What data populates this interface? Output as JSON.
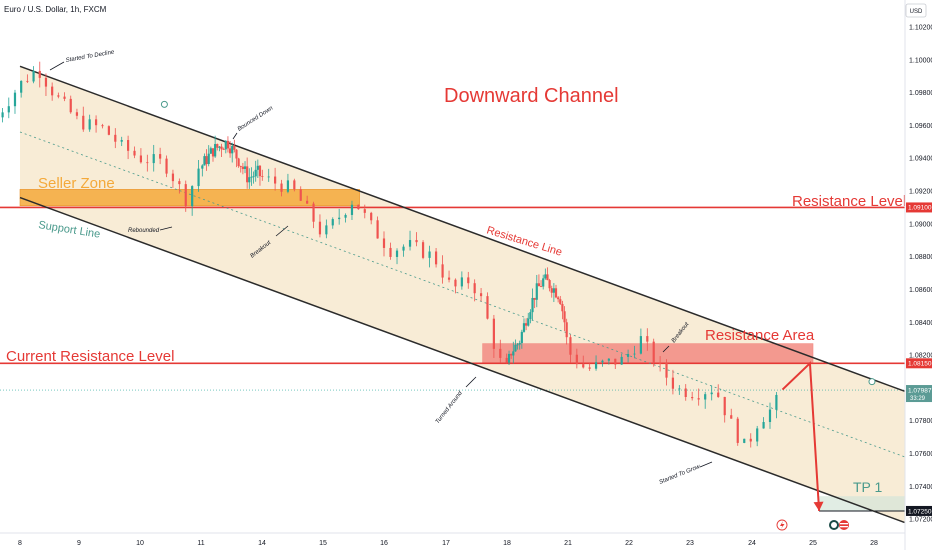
{
  "header": {
    "symbol_title": "Euro / U.S. Dollar, 1h, FXCM",
    "currency_button": "USD"
  },
  "colors": {
    "channel_fill": "#f5e6c8",
    "seller_zone": "#f4a93a",
    "resistance_area": "#f28b82",
    "red_line": "#e53935",
    "up_candle": "#26a69a",
    "down_candle": "#ef5350",
    "channel_line": "#2b2b2b",
    "midline": "#4a9a8c",
    "arrow": "#e53935",
    "tp_fill": "#d4e6d8"
  },
  "chart_data": {
    "type": "candlestick",
    "instrument": "Euro / U.S. Dollar",
    "timeframe": "1h",
    "y_axis": {
      "ticks": [
        "1.10200",
        "1.10000",
        "1.09800",
        "1.09600",
        "1.09400",
        "1.09200",
        "1.09000",
        "1.08800",
        "1.08600",
        "1.08400",
        "1.08200",
        "1.08000",
        "1.07800",
        "1.07600",
        "1.07400",
        "1.07200"
      ],
      "ylim": [
        1.0714,
        1.1034
      ]
    },
    "x_axis": {
      "ticks": [
        "8",
        "9",
        "10",
        "11",
        "14",
        "15",
        "16",
        "17",
        "18",
        "21",
        "22",
        "23",
        "24",
        "25",
        "28"
      ]
    },
    "price_labels": {
      "resistance_level": "1.09100",
      "current_resistance": "1.08150",
      "current_price": "1.07987",
      "countdown": "33:29",
      "tp1": "1.07250"
    },
    "levels": {
      "resistance_level": 1.091,
      "current_resistance": 1.0815,
      "tp1": 1.0725
    },
    "channel": {
      "upper": [
        {
          "x": 8.0,
          "y": 1.0996
        },
        {
          "x": 28.5,
          "y": 1.0798
        }
      ],
      "lower": [
        {
          "x": 8.0,
          "y": 1.0916
        },
        {
          "x": 28.5,
          "y": 1.0718
        }
      ]
    },
    "zones": [
      {
        "name": "seller_zone",
        "x0": 8.0,
        "x1": 15.6,
        "y0": 1.0911,
        "y1": 1.0921
      },
      {
        "name": "resistance_area",
        "x0": 17.6,
        "x1": 25.0,
        "y0": 1.0815,
        "y1": 1.0827
      }
    ],
    "projection": [
      {
        "x": 24.5,
        "y": 1.0799
      },
      {
        "x": 24.95,
        "y": 1.0815
      },
      {
        "x": 25.3,
        "y": 1.0725
      }
    ],
    "price_path": [
      {
        "x": 7.6,
        "y": 1.0965
      },
      {
        "x": 7.8,
        "y": 1.0975
      },
      {
        "x": 8.0,
        "y": 1.0985
      },
      {
        "x": 8.3,
        "y": 1.0995
      },
      {
        "x": 8.6,
        "y": 1.0978
      },
      {
        "x": 9.0,
        "y": 1.0962
      },
      {
        "x": 9.4,
        "y": 1.0958
      },
      {
        "x": 9.7,
        "y": 1.0947
      },
      {
        "x": 10.0,
        "y": 1.094
      },
      {
        "x": 10.4,
        "y": 1.0937
      },
      {
        "x": 10.6,
        "y": 1.0925
      },
      {
        "x": 10.8,
        "y": 1.0912
      },
      {
        "x": 10.9,
        "y": 1.0933
      },
      {
        "x": 11.3,
        "y": 1.094
      },
      {
        "x": 11.6,
        "y": 1.0945
      },
      {
        "x": 12.3,
        "y": 1.095
      },
      {
        "x": 12.9,
        "y": 1.0938
      },
      {
        "x": 13.3,
        "y": 1.0928
      },
      {
        "x": 13.8,
        "y": 1.0931
      },
      {
        "x": 14.5,
        "y": 1.0921
      },
      {
        "x": 14.8,
        "y": 1.0905
      },
      {
        "x": 15.0,
        "y": 1.0893
      },
      {
        "x": 15.3,
        "y": 1.0906
      },
      {
        "x": 15.5,
        "y": 1.0915
      },
      {
        "x": 15.8,
        "y": 1.0898
      },
      {
        "x": 16.1,
        "y": 1.0884
      },
      {
        "x": 16.4,
        "y": 1.0887
      },
      {
        "x": 16.8,
        "y": 1.088
      },
      {
        "x": 17.1,
        "y": 1.086
      },
      {
        "x": 17.4,
        "y": 1.0866
      },
      {
        "x": 17.6,
        "y": 1.0852
      },
      {
        "x": 17.8,
        "y": 1.0825
      },
      {
        "x": 17.95,
        "y": 1.081
      },
      {
        "x": 18.2,
        "y": 1.0822
      },
      {
        "x": 18.6,
        "y": 1.0828
      },
      {
        "x": 19.0,
        "y": 1.0845
      },
      {
        "x": 19.4,
        "y": 1.0858
      },
      {
        "x": 19.8,
        "y": 1.0866
      },
      {
        "x": 20.2,
        "y": 1.0862
      },
      {
        "x": 20.6,
        "y": 1.0856
      },
      {
        "x": 20.85,
        "y": 1.0839
      },
      {
        "x": 21.0,
        "y": 1.0822
      },
      {
        "x": 21.3,
        "y": 1.0811
      },
      {
        "x": 21.6,
        "y": 1.0815
      },
      {
        "x": 21.9,
        "y": 1.0817
      },
      {
        "x": 22.2,
        "y": 1.083
      },
      {
        "x": 22.5,
        "y": 1.0812
      },
      {
        "x": 22.8,
        "y": 1.0799
      },
      {
        "x": 23.1,
        "y": 1.0797
      },
      {
        "x": 23.4,
        "y": 1.08
      },
      {
        "x": 23.7,
        "y": 1.0775
      },
      {
        "x": 23.9,
        "y": 1.0763
      },
      {
        "x": 24.1,
        "y": 1.078
      },
      {
        "x": 24.35,
        "y": 1.0788
      },
      {
        "x": 24.5,
        "y": 1.0799
      }
    ],
    "annotations": {
      "title": "Downward Channel",
      "seller_zone": "Seller Zone",
      "support_line": "Support Line",
      "resistance_level": "Resistance Level",
      "resistance_line": "Resistance Line",
      "current_resistance_level": "Current Resistance Level",
      "resistance_area": "Resistance Area",
      "tp1": "TP 1",
      "started_to_decline": "Started To Decline",
      "bounced_down": "Bounced Down",
      "rebounded": "Rebounded",
      "breakout_1": "Breakout",
      "breakout_2": "Breakout",
      "turned_around": "Turned Around",
      "started_to_grow": "Started To Grow"
    }
  }
}
